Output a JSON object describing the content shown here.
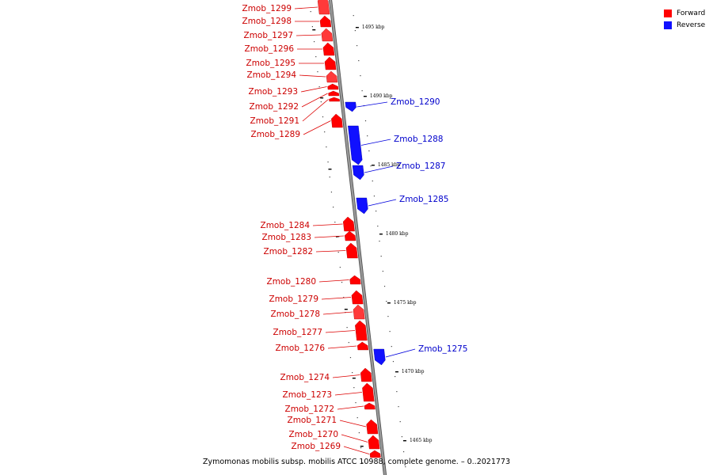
{
  "colors": {
    "forward": "#ff0000",
    "reverse": "#1010ff",
    "backbone": "#9a9a9a"
  },
  "legend": [
    {
      "label": "Forward",
      "color": "#ff0000"
    },
    {
      "label": "Reverse",
      "color": "#1010ff"
    }
  ],
  "caption": "Zymomonas mobilis subsp. mobilis ATCC 10988, complete genome. – 0..2021773",
  "scale_labels": [
    "1495 kbp",
    "1490 kbp",
    "1485 kbp",
    "1480 kbp",
    "1475 kbp",
    "1470 kbp",
    "1465 kbp"
  ],
  "genes": [
    {
      "name": "Zmob_1299",
      "strand": "forward"
    },
    {
      "name": "Zmob_1298",
      "strand": "forward"
    },
    {
      "name": "Zmob_1297",
      "strand": "forward"
    },
    {
      "name": "Zmob_1296",
      "strand": "forward"
    },
    {
      "name": "Zmob_1295",
      "strand": "forward"
    },
    {
      "name": "Zmob_1294",
      "strand": "forward"
    },
    {
      "name": "Zmob_1293",
      "strand": "forward"
    },
    {
      "name": "Zmob_1292",
      "strand": "forward"
    },
    {
      "name": "Zmob_1291",
      "strand": "forward"
    },
    {
      "name": "Zmob_1289",
      "strand": "forward"
    },
    {
      "name": "Zmob_1290",
      "strand": "reverse"
    },
    {
      "name": "Zmob_1288",
      "strand": "reverse"
    },
    {
      "name": "Zmob_1287",
      "strand": "reverse"
    },
    {
      "name": "Zmob_1285",
      "strand": "reverse"
    },
    {
      "name": "Zmob_1284",
      "strand": "forward"
    },
    {
      "name": "Zmob_1283",
      "strand": "forward"
    },
    {
      "name": "Zmob_1282",
      "strand": "forward"
    },
    {
      "name": "Zmob_1280",
      "strand": "forward"
    },
    {
      "name": "Zmob_1279",
      "strand": "forward"
    },
    {
      "name": "Zmob_1278",
      "strand": "forward"
    },
    {
      "name": "Zmob_1277",
      "strand": "forward"
    },
    {
      "name": "Zmob_1276",
      "strand": "forward"
    },
    {
      "name": "Zmob_1275",
      "strand": "reverse"
    },
    {
      "name": "Zmob_1274",
      "strand": "forward"
    },
    {
      "name": "Zmob_1273",
      "strand": "forward"
    },
    {
      "name": "Zmob_1272",
      "strand": "forward"
    },
    {
      "name": "Zmob_1271",
      "strand": "forward"
    },
    {
      "name": "Zmob_1270",
      "strand": "forward"
    },
    {
      "name": "Zmob_1269",
      "strand": "forward"
    }
  ]
}
